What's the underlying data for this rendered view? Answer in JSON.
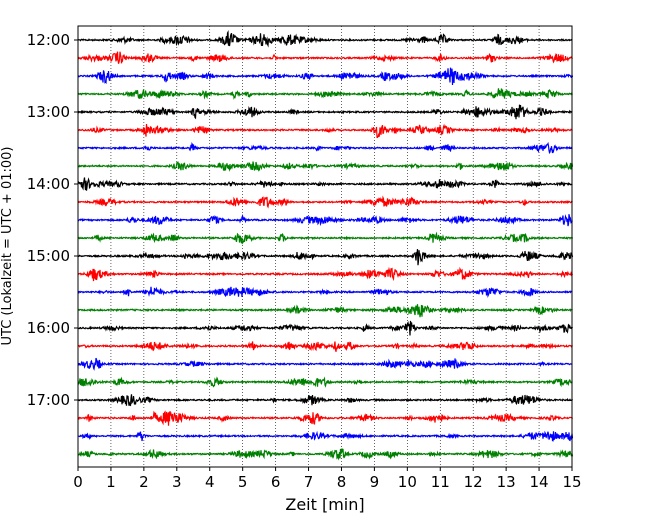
{
  "chart_data": {
    "type": "line",
    "title": "",
    "xlabel": "Zeit  [min]",
    "ylabel": "UTC (Lokalzeit = UTC + 01:00)",
    "xlim": [
      0,
      15
    ],
    "x_ticks": [
      "0",
      "1",
      "2",
      "3",
      "4",
      "5",
      "6",
      "7",
      "8",
      "9",
      "10",
      "11",
      "12",
      "13",
      "14",
      "15"
    ],
    "y_ticks": [
      "12:00",
      "13:00",
      "14:00",
      "15:00",
      "16:00",
      "17:00"
    ],
    "grid": "vertical dotted",
    "trace_interval_min": 15,
    "trace_colors": [
      "#000000",
      "#ff0000",
      "#0000ff",
      "#008000"
    ],
    "traces": [
      {
        "start": "12:00"
      },
      {
        "start": "12:15"
      },
      {
        "start": "12:30"
      },
      {
        "start": "12:45"
      },
      {
        "start": "13:00"
      },
      {
        "start": "13:15"
      },
      {
        "start": "13:30"
      },
      {
        "start": "13:45"
      },
      {
        "start": "14:00"
      },
      {
        "start": "14:15"
      },
      {
        "start": "14:30"
      },
      {
        "start": "14:45"
      },
      {
        "start": "15:00"
      },
      {
        "start": "15:15"
      },
      {
        "start": "15:30"
      },
      {
        "start": "15:45"
      },
      {
        "start": "16:00"
      },
      {
        "start": "16:15"
      },
      {
        "start": "16:30"
      },
      {
        "start": "16:45"
      },
      {
        "start": "17:00"
      },
      {
        "start": "17:15"
      },
      {
        "start": "17:30"
      },
      {
        "start": "17:45"
      }
    ]
  }
}
